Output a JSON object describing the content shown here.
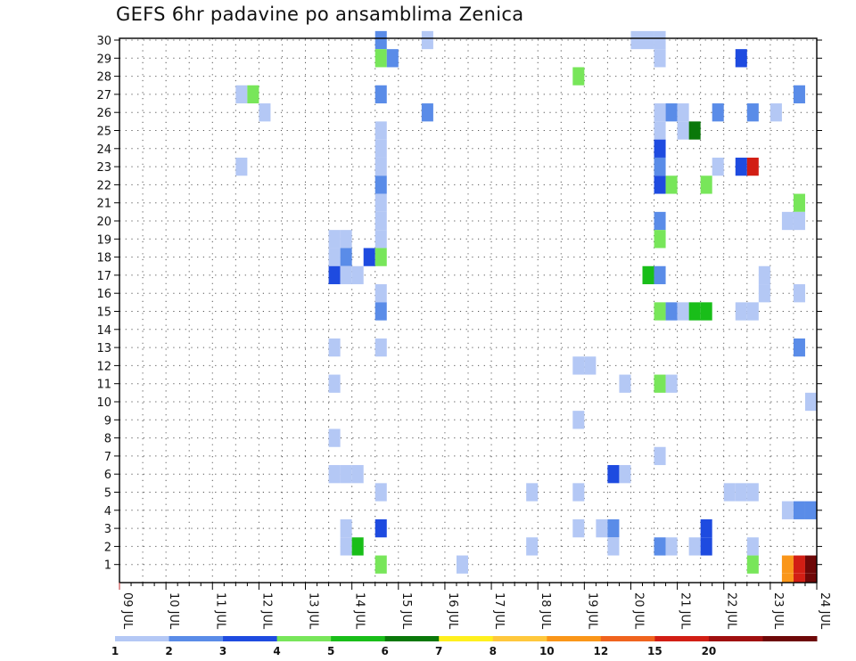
{
  "chart_data": {
    "type": "heatmap",
    "title": "GEFS 6hr padavine po ansamblima Zenica",
    "x_tick_labels": [
      "09 JUL",
      "10 JUL",
      "11 JUL",
      "12 JUL",
      "13 JUL",
      "14 JUL",
      "15 JUL",
      "16 JUL",
      "17 JUL",
      "18 JUL",
      "19 JUL",
      "20 JUL",
      "21 JUL",
      "22 JUL",
      "23 JUL",
      "24 JUL"
    ],
    "y_tick_labels": [
      1,
      2,
      3,
      4,
      5,
      6,
      7,
      8,
      9,
      10,
      11,
      12,
      13,
      14,
      15,
      16,
      17,
      18,
      19,
      20,
      21,
      22,
      23,
      24,
      25,
      26,
      27,
      28,
      29,
      30
    ],
    "xlim_days": [
      9,
      24
    ],
    "ylim": [
      0,
      30
    ],
    "grid": true,
    "color_scale": {
      "levels": [
        "1",
        "2",
        "3",
        "4",
        "5",
        "6",
        "7",
        "8",
        "10",
        "12",
        "15",
        "20"
      ],
      "colors": [
        "#b4c8f5",
        "#5a8ce8",
        "#1e4be0",
        "#78e65a",
        "#19be19",
        "#0a780a",
        "#fff01e",
        "#ffc83c",
        "#fa9619",
        "#f0641e",
        "#d21e14",
        "#a00f0f",
        "#6e0808"
      ]
    },
    "cells": [
      {
        "day": 14.75,
        "member": 30,
        "c": 1
      },
      {
        "day": 15.75,
        "member": 30,
        "c": 0
      },
      {
        "day": 20.25,
        "member": 30,
        "c": 0
      },
      {
        "day": 20.5,
        "member": 30,
        "c": 0
      },
      {
        "day": 20.75,
        "member": 30,
        "c": 0
      },
      {
        "day": 14.75,
        "member": 29,
        "c": 3
      },
      {
        "day": 15.0,
        "member": 29,
        "c": 1
      },
      {
        "day": 20.75,
        "member": 29,
        "c": 0
      },
      {
        "day": 22.5,
        "member": 29,
        "c": 2
      },
      {
        "day": 19.0,
        "member": 28,
        "c": 3
      },
      {
        "day": 11.75,
        "member": 27,
        "c": 0
      },
      {
        "day": 12.0,
        "member": 27,
        "c": 3
      },
      {
        "day": 14.75,
        "member": 27,
        "c": 1
      },
      {
        "day": 23.75,
        "member": 27,
        "c": 1
      },
      {
        "day": 12.25,
        "member": 26,
        "c": 0
      },
      {
        "day": 15.75,
        "member": 26,
        "c": 1
      },
      {
        "day": 20.75,
        "member": 26,
        "c": 0
      },
      {
        "day": 21.0,
        "member": 26,
        "c": 1
      },
      {
        "day": 21.25,
        "member": 26,
        "c": 0
      },
      {
        "day": 22.0,
        "member": 26,
        "c": 1
      },
      {
        "day": 22.75,
        "member": 26,
        "c": 1
      },
      {
        "day": 23.25,
        "member": 26,
        "c": 0
      },
      {
        "day": 14.75,
        "member": 25,
        "c": 0
      },
      {
        "day": 20.75,
        "member": 25,
        "c": 0
      },
      {
        "day": 21.25,
        "member": 25,
        "c": 0
      },
      {
        "day": 21.5,
        "member": 25,
        "c": 5
      },
      {
        "day": 14.75,
        "member": 24,
        "c": 0
      },
      {
        "day": 20.75,
        "member": 24,
        "c": 2
      },
      {
        "day": 11.75,
        "member": 23,
        "c": 0
      },
      {
        "day": 14.75,
        "member": 23,
        "c": 0
      },
      {
        "day": 20.75,
        "member": 23,
        "c": 1
      },
      {
        "day": 22.0,
        "member": 23,
        "c": 0
      },
      {
        "day": 22.5,
        "member": 23,
        "c": 2
      },
      {
        "day": 22.75,
        "member": 23,
        "c": 10
      },
      {
        "day": 14.75,
        "member": 22,
        "c": 1
      },
      {
        "day": 20.75,
        "member": 22,
        "c": 2
      },
      {
        "day": 21.0,
        "member": 22,
        "c": 3
      },
      {
        "day": 21.75,
        "member": 22,
        "c": 3
      },
      {
        "day": 14.75,
        "member": 21,
        "c": 0
      },
      {
        "day": 23.75,
        "member": 21,
        "c": 3
      },
      {
        "day": 14.75,
        "member": 20,
        "c": 0
      },
      {
        "day": 20.75,
        "member": 20,
        "c": 1
      },
      {
        "day": 23.5,
        "member": 20,
        "c": 0
      },
      {
        "day": 23.75,
        "member": 20,
        "c": 0
      },
      {
        "day": 14.75,
        "member": 19,
        "c": 0
      },
      {
        "day": 13.75,
        "member": 19,
        "c": 0
      },
      {
        "day": 14.0,
        "member": 19,
        "c": 0
      },
      {
        "day": 20.75,
        "member": 19,
        "c": 3
      },
      {
        "day": 13.75,
        "member": 18,
        "c": 0
      },
      {
        "day": 14.0,
        "member": 18,
        "c": 1
      },
      {
        "day": 14.5,
        "member": 18,
        "c": 2
      },
      {
        "day": 14.75,
        "member": 18,
        "c": 3
      },
      {
        "day": 13.75,
        "member": 17,
        "c": 2
      },
      {
        "day": 14.0,
        "member": 17,
        "c": 0
      },
      {
        "day": 14.25,
        "member": 17,
        "c": 0
      },
      {
        "day": 20.5,
        "member": 17,
        "c": 4
      },
      {
        "day": 20.75,
        "member": 17,
        "c": 1
      },
      {
        "day": 23.0,
        "member": 17,
        "c": 0
      },
      {
        "day": 14.75,
        "member": 16,
        "c": 0
      },
      {
        "day": 23.0,
        "member": 16,
        "c": 0
      },
      {
        "day": 23.75,
        "member": 16,
        "c": 0
      },
      {
        "day": 14.75,
        "member": 15,
        "c": 1
      },
      {
        "day": 20.75,
        "member": 15,
        "c": 3
      },
      {
        "day": 21.0,
        "member": 15,
        "c": 1
      },
      {
        "day": 21.25,
        "member": 15,
        "c": 0
      },
      {
        "day": 21.5,
        "member": 15,
        "c": 4
      },
      {
        "day": 21.75,
        "member": 15,
        "c": 4
      },
      {
        "day": 22.5,
        "member": 15,
        "c": 0
      },
      {
        "day": 22.75,
        "member": 15,
        "c": 0
      },
      {
        "day": 13.75,
        "member": 13,
        "c": 0
      },
      {
        "day": 14.75,
        "member": 13,
        "c": 0
      },
      {
        "day": 23.75,
        "member": 13,
        "c": 1
      },
      {
        "day": 19.0,
        "member": 12,
        "c": 0
      },
      {
        "day": 19.25,
        "member": 12,
        "c": 0
      },
      {
        "day": 13.75,
        "member": 11,
        "c": 0
      },
      {
        "day": 20.0,
        "member": 11,
        "c": 0
      },
      {
        "day": 20.75,
        "member": 11,
        "c": 3
      },
      {
        "day": 21.0,
        "member": 11,
        "c": 0
      },
      {
        "day": 24.0,
        "member": 10,
        "c": 0
      },
      {
        "day": 19.0,
        "member": 9,
        "c": 0
      },
      {
        "day": 13.75,
        "member": 8,
        "c": 0
      },
      {
        "day": 20.75,
        "member": 7,
        "c": 0
      },
      {
        "day": 13.75,
        "member": 6,
        "c": 0
      },
      {
        "day": 14.0,
        "member": 6,
        "c": 0
      },
      {
        "day": 14.25,
        "member": 6,
        "c": 0
      },
      {
        "day": 19.75,
        "member": 6,
        "c": 2
      },
      {
        "day": 20.0,
        "member": 6,
        "c": 0
      },
      {
        "day": 14.75,
        "member": 5,
        "c": 0
      },
      {
        "day": 18.0,
        "member": 5,
        "c": 0
      },
      {
        "day": 19.0,
        "member": 5,
        "c": 0
      },
      {
        "day": 22.25,
        "member": 5,
        "c": 0
      },
      {
        "day": 22.5,
        "member": 5,
        "c": 0
      },
      {
        "day": 22.75,
        "member": 5,
        "c": 0
      },
      {
        "day": 23.5,
        "member": 4,
        "c": 0
      },
      {
        "day": 23.75,
        "member": 4,
        "c": 1
      },
      {
        "day": 24.0,
        "member": 4,
        "c": 1
      },
      {
        "day": 14.0,
        "member": 3,
        "c": 0
      },
      {
        "day": 14.75,
        "member": 3,
        "c": 2
      },
      {
        "day": 19.0,
        "member": 3,
        "c": 0
      },
      {
        "day": 19.5,
        "member": 3,
        "c": 0
      },
      {
        "day": 19.75,
        "member": 3,
        "c": 1
      },
      {
        "day": 21.75,
        "member": 3,
        "c": 2
      },
      {
        "day": 14.0,
        "member": 2,
        "c": 0
      },
      {
        "day": 14.25,
        "member": 2,
        "c": 4
      },
      {
        "day": 18.0,
        "member": 2,
        "c": 0
      },
      {
        "day": 19.75,
        "member": 2,
        "c": 0
      },
      {
        "day": 20.75,
        "member": 2,
        "c": 1
      },
      {
        "day": 21.0,
        "member": 2,
        "c": 0
      },
      {
        "day": 21.5,
        "member": 2,
        "c": 0
      },
      {
        "day": 21.75,
        "member": 2,
        "c": 2
      },
      {
        "day": 22.75,
        "member": 2,
        "c": 0
      },
      {
        "day": 14.75,
        "member": 1,
        "c": 3
      },
      {
        "day": 16.5,
        "member": 1,
        "c": 0
      },
      {
        "day": 22.75,
        "member": 1,
        "c": 3
      },
      {
        "day": 23.5,
        "member": 1,
        "c": 8
      },
      {
        "day": 23.75,
        "member": 1,
        "c": 10
      },
      {
        "day": 24.0,
        "member": 1,
        "c": 12
      }
    ]
  }
}
